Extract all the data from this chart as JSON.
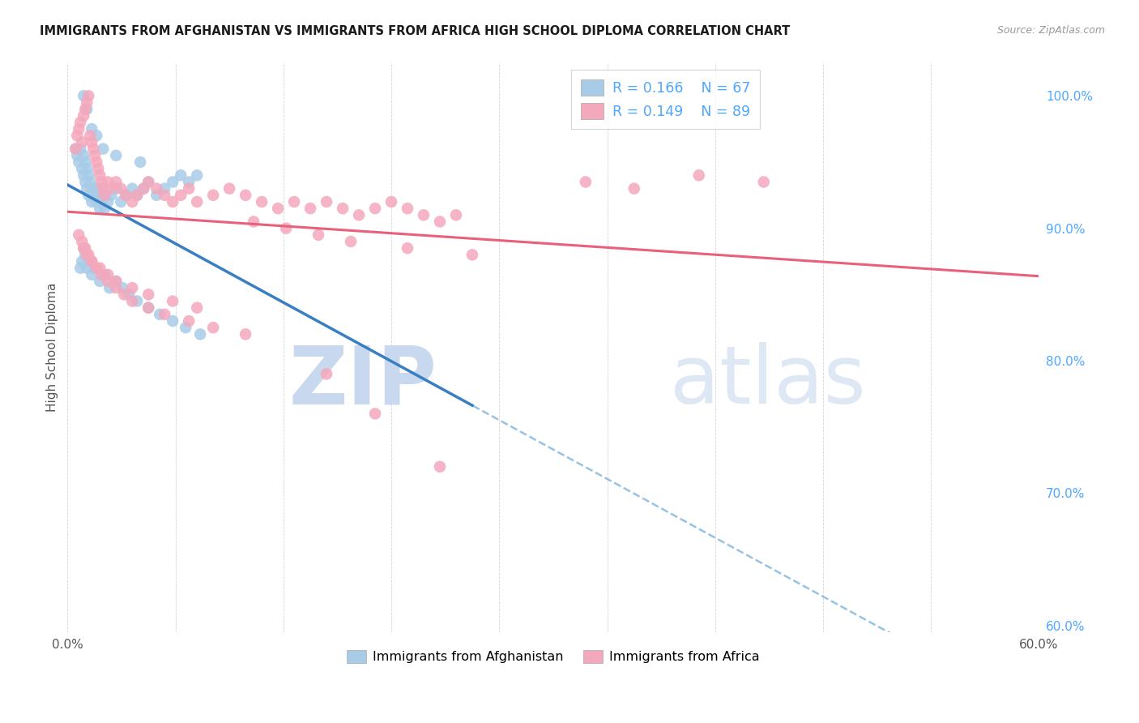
{
  "title": "IMMIGRANTS FROM AFGHANISTAN VS IMMIGRANTS FROM AFRICA HIGH SCHOOL DIPLOMA CORRELATION CHART",
  "source": "Source: ZipAtlas.com",
  "ylabel": "High School Diploma",
  "legend_r1": "R = 0.166",
  "legend_n1": "N = 67",
  "legend_r2": "R = 0.149",
  "legend_n2": "N = 89",
  "legend_label1": "Immigrants from Afghanistan",
  "legend_label2": "Immigrants from Africa",
  "blue_color": "#a8cce8",
  "pink_color": "#f4a8bc",
  "blue_line_color": "#3a7fc1",
  "pink_line_color": "#e8607a",
  "dashed_line_color": "#85b8de",
  "right_axis_color": "#4da6ff",
  "right_ytick_vals": [
    0.6,
    0.7,
    0.8,
    0.9,
    1.0
  ],
  "right_yticks": [
    "60.0%",
    "70.0%",
    "80.0%",
    "90.0%",
    "100.0%"
  ],
  "xlim": [
    0.0,
    0.6
  ],
  "ylim": [
    0.595,
    1.025
  ],
  "afghanistan_x": [
    0.005,
    0.006,
    0.007,
    0.008,
    0.009,
    0.01,
    0.01,
    0.011,
    0.011,
    0.012,
    0.012,
    0.013,
    0.013,
    0.014,
    0.015,
    0.015,
    0.016,
    0.017,
    0.018,
    0.019,
    0.02,
    0.02,
    0.021,
    0.022,
    0.023,
    0.025,
    0.027,
    0.03,
    0.033,
    0.036,
    0.04,
    0.043,
    0.047,
    0.05,
    0.055,
    0.06,
    0.065,
    0.07,
    0.075,
    0.08,
    0.008,
    0.009,
    0.01,
    0.011,
    0.012,
    0.013,
    0.015,
    0.017,
    0.02,
    0.023,
    0.026,
    0.03,
    0.034,
    0.038,
    0.043,
    0.05,
    0.057,
    0.065,
    0.073,
    0.082,
    0.01,
    0.012,
    0.015,
    0.018,
    0.022,
    0.03,
    0.045
  ],
  "afghanistan_y": [
    0.96,
    0.955,
    0.95,
    0.96,
    0.945,
    0.955,
    0.94,
    0.95,
    0.935,
    0.945,
    0.93,
    0.94,
    0.925,
    0.935,
    0.93,
    0.92,
    0.925,
    0.93,
    0.92,
    0.925,
    0.93,
    0.915,
    0.92,
    0.925,
    0.915,
    0.92,
    0.925,
    0.93,
    0.92,
    0.925,
    0.93,
    0.925,
    0.93,
    0.935,
    0.925,
    0.93,
    0.935,
    0.94,
    0.935,
    0.94,
    0.87,
    0.875,
    0.885,
    0.88,
    0.87,
    0.875,
    0.865,
    0.87,
    0.86,
    0.865,
    0.855,
    0.86,
    0.855,
    0.85,
    0.845,
    0.84,
    0.835,
    0.83,
    0.825,
    0.82,
    1.0,
    0.99,
    0.975,
    0.97,
    0.96,
    0.955,
    0.95
  ],
  "africa_x": [
    0.005,
    0.006,
    0.007,
    0.008,
    0.009,
    0.01,
    0.011,
    0.012,
    0.013,
    0.014,
    0.015,
    0.016,
    0.017,
    0.018,
    0.019,
    0.02,
    0.021,
    0.022,
    0.023,
    0.025,
    0.027,
    0.03,
    0.033,
    0.036,
    0.04,
    0.043,
    0.047,
    0.05,
    0.055,
    0.06,
    0.065,
    0.07,
    0.075,
    0.08,
    0.09,
    0.1,
    0.11,
    0.12,
    0.13,
    0.14,
    0.15,
    0.16,
    0.17,
    0.18,
    0.19,
    0.2,
    0.21,
    0.22,
    0.23,
    0.24,
    0.007,
    0.009,
    0.011,
    0.013,
    0.015,
    0.018,
    0.021,
    0.025,
    0.03,
    0.035,
    0.04,
    0.05,
    0.06,
    0.075,
    0.09,
    0.11,
    0.01,
    0.012,
    0.015,
    0.02,
    0.025,
    0.03,
    0.04,
    0.05,
    0.065,
    0.08,
    0.32,
    0.35,
    0.39,
    0.43,
    0.16,
    0.19,
    0.23,
    0.115,
    0.135,
    0.155,
    0.175,
    0.21,
    0.25
  ],
  "africa_y": [
    0.96,
    0.97,
    0.975,
    0.98,
    0.965,
    0.985,
    0.99,
    0.995,
    1.0,
    0.97,
    0.965,
    0.96,
    0.955,
    0.95,
    0.945,
    0.94,
    0.935,
    0.93,
    0.925,
    0.935,
    0.93,
    0.935,
    0.93,
    0.925,
    0.92,
    0.925,
    0.93,
    0.935,
    0.93,
    0.925,
    0.92,
    0.925,
    0.93,
    0.92,
    0.925,
    0.93,
    0.925,
    0.92,
    0.915,
    0.92,
    0.915,
    0.92,
    0.915,
    0.91,
    0.915,
    0.92,
    0.915,
    0.91,
    0.905,
    0.91,
    0.895,
    0.89,
    0.885,
    0.88,
    0.875,
    0.87,
    0.865,
    0.86,
    0.855,
    0.85,
    0.845,
    0.84,
    0.835,
    0.83,
    0.825,
    0.82,
    0.885,
    0.88,
    0.875,
    0.87,
    0.865,
    0.86,
    0.855,
    0.85,
    0.845,
    0.84,
    0.935,
    0.93,
    0.94,
    0.935,
    0.79,
    0.76,
    0.72,
    0.905,
    0.9,
    0.895,
    0.89,
    0.885,
    0.88
  ]
}
